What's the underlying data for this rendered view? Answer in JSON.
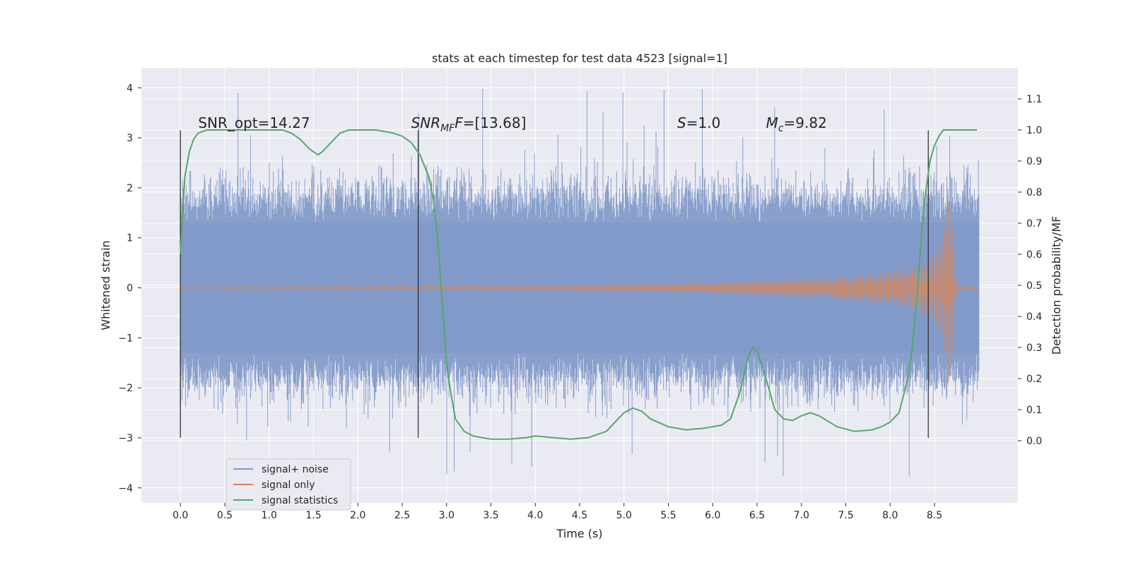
{
  "chart_data": {
    "type": "line",
    "title": "stats at each timestep for test data 4523 [signal=1]",
    "xlabel": "Time (s)",
    "ylabel_left": "Whitened strain",
    "ylabel_right": "Detection probability/MF",
    "xlim": [
      -0.44,
      9.44
    ],
    "ylim_left": [
      -4.3,
      4.4
    ],
    "ylim_right": [
      -0.2,
      1.2
    ],
    "x_ticks": [
      0.0,
      0.5,
      1.0,
      1.5,
      2.0,
      2.5,
      3.0,
      3.5,
      4.0,
      4.5,
      5.0,
      5.5,
      6.0,
      6.5,
      7.0,
      7.5,
      8.0,
      8.5
    ],
    "x_tick_labels": [
      "0.0",
      "0.5",
      "1.0",
      "1.5",
      "2.0",
      "2.5",
      "3.0",
      "3.5",
      "4.0",
      "4.5",
      "5.0",
      "5.5",
      "6.0",
      "6.5",
      "7.0",
      "7.5",
      "8.0",
      "8.5"
    ],
    "y_left_ticks": [
      4,
      3,
      2,
      1,
      0,
      -1,
      -2,
      -3,
      -4
    ],
    "y_left_tick_labels": [
      "4",
      "3",
      "2",
      "1",
      "0",
      "−1",
      "−2",
      "−3",
      "−4"
    ],
    "y_right_ticks": [
      1.1,
      1.0,
      0.9,
      0.8,
      0.7,
      0.6,
      0.5,
      0.4,
      0.3,
      0.2,
      0.1,
      0.0
    ],
    "y_right_tick_labels": [
      "1.1",
      "1.0",
      "0.9",
      "0.8",
      "0.7",
      "0.6",
      "0.5",
      "0.4",
      "0.3",
      "0.2",
      "0.1",
      "0.0"
    ],
    "grid": true,
    "legend_placement": "lower-left",
    "series": [
      {
        "name": "signal+ noise",
        "color": "#7f98c8",
        "axis": "left",
        "style": "dense-noise",
        "t_range": [
          0.0,
          9.0
        ],
        "core_amplitude": 1.3,
        "typical_peak": 2.0,
        "max_value": 4.0,
        "min_value": -3.9
      },
      {
        "name": "signal only",
        "color": "#dd8452",
        "axis": "left",
        "style": "chirp-envelope",
        "envelope_t": [
          0.0,
          2.0,
          4.0,
          5.0,
          6.0,
          7.0,
          7.5,
          8.0,
          8.3,
          8.5,
          8.6,
          8.65,
          8.7,
          8.75,
          9.0
        ],
        "envelope_amp": [
          0.04,
          0.04,
          0.05,
          0.07,
          0.11,
          0.18,
          0.24,
          0.33,
          0.45,
          0.68,
          1.1,
          2.0,
          1.4,
          0.05,
          0.02
        ]
      },
      {
        "name": "signal statistics",
        "color": "#55a868",
        "axis": "right",
        "x": [
          0.0,
          0.05,
          0.1,
          0.15,
          0.2,
          0.3,
          0.5,
          0.8,
          1.0,
          1.15,
          1.25,
          1.35,
          1.45,
          1.5,
          1.55,
          1.6,
          1.7,
          1.8,
          1.9,
          2.0,
          2.2,
          2.4,
          2.5,
          2.6,
          2.7,
          2.8,
          2.85,
          2.9,
          2.95,
          3.0,
          3.05,
          3.1,
          3.2,
          3.3,
          3.5,
          3.7,
          3.9,
          4.0,
          4.2,
          4.4,
          4.6,
          4.8,
          4.9,
          5.0,
          5.1,
          5.2,
          5.3,
          5.5,
          5.7,
          5.9,
          6.1,
          6.2,
          6.3,
          6.4,
          6.45,
          6.5,
          6.6,
          6.7,
          6.8,
          6.9,
          7.0,
          7.1,
          7.2,
          7.4,
          7.6,
          7.8,
          7.9,
          8.0,
          8.1,
          8.2,
          8.25,
          8.3,
          8.35,
          8.4,
          8.45,
          8.5,
          8.55,
          8.6,
          8.7,
          8.8,
          8.9,
          8.98
        ],
        "values": [
          0.6,
          0.85,
          0.93,
          0.97,
          0.99,
          1.0,
          1.0,
          1.0,
          1.0,
          1.0,
          0.99,
          0.97,
          0.94,
          0.93,
          0.92,
          0.93,
          0.96,
          0.99,
          1.0,
          1.0,
          1.0,
          0.99,
          0.98,
          0.96,
          0.92,
          0.85,
          0.78,
          0.65,
          0.45,
          0.25,
          0.15,
          0.07,
          0.03,
          0.015,
          0.005,
          0.005,
          0.01,
          0.015,
          0.01,
          0.005,
          0.01,
          0.03,
          0.06,
          0.09,
          0.105,
          0.095,
          0.07,
          0.045,
          0.035,
          0.04,
          0.05,
          0.07,
          0.15,
          0.27,
          0.3,
          0.29,
          0.2,
          0.1,
          0.07,
          0.065,
          0.08,
          0.09,
          0.08,
          0.045,
          0.03,
          0.035,
          0.045,
          0.06,
          0.09,
          0.2,
          0.3,
          0.45,
          0.65,
          0.8,
          0.9,
          0.95,
          0.98,
          1.0,
          1.0,
          1.0,
          1.0,
          1.0
        ]
      }
    ],
    "vertical_lines": [
      0.0,
      2.68,
      8.43
    ],
    "vertical_line_range": [
      -3.0,
      3.15
    ],
    "annotations": [
      {
        "text": "SNR_opt=14.27",
        "x": 0.2,
        "y": 3.2
      },
      {
        "text": "F=[13.68]",
        "prefix": "SNR",
        "sub": "MF",
        "x": 2.6,
        "y": 3.2
      },
      {
        "text": "=1.0",
        "prefix": "S",
        "sub": "",
        "x": 5.6,
        "y": 3.2
      },
      {
        "text": "=9.82",
        "prefix": "M",
        "sub": "c",
        "x": 6.6,
        "y": 3.2
      }
    ]
  },
  "colors": {
    "plot_background": "#eaeaf2",
    "grid": "#ffffff",
    "page_background": "#ffffff",
    "vline": "#262626"
  }
}
